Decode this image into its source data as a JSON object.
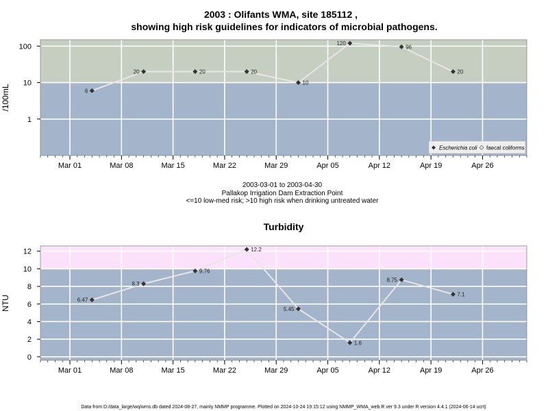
{
  "chart_data": [
    {
      "type": "line",
      "title": "2003 : Olifants WMA, site 185112 ,",
      "subtitle": "showing high risk guidelines for indicators of microbial pathogens.",
      "ylabel": "/100mL",
      "y_scale": "log",
      "ylim": [
        0.1,
        150
      ],
      "y_ticks": [
        1,
        10,
        100
      ],
      "y_tick_labels": [
        "1",
        "10",
        "100"
      ],
      "x_range": [
        "2003-02-25",
        "2003-05-02"
      ],
      "x_ticks": [
        "2003-03-01",
        "2003-03-08",
        "2003-03-15",
        "2003-03-22",
        "2003-03-29",
        "2003-04-05",
        "2003-04-12",
        "2003-04-19",
        "2003-04-26"
      ],
      "x_tick_labels": [
        "Mar 01",
        "Mar 08",
        "Mar 15",
        "Mar 22",
        "Mar 29",
        "Apr 05",
        "Apr 12",
        "Apr 19",
        "Apr 26"
      ],
      "bands": [
        {
          "from": 0.1,
          "to": 10,
          "color": "#a3b4cb"
        },
        {
          "from": 10,
          "to": 150,
          "color": "#c5cec1"
        }
      ],
      "series": [
        {
          "name": "Escherichia coli",
          "x": [
            "2003-03-04",
            "2003-03-11",
            "2003-03-18",
            "2003-03-25",
            "2003-04-01",
            "2003-04-08",
            "2003-04-15",
            "2003-04-22"
          ],
          "values": [
            6,
            20,
            20,
            20,
            10,
            120,
            96,
            20
          ],
          "labels": [
            "6",
            "20",
            "20",
            "20",
            "10",
            "120",
            "96",
            "20"
          ],
          "label_side": [
            "left",
            "left",
            "right",
            "right",
            "right",
            "left",
            "right",
            "right"
          ]
        }
      ],
      "legend": {
        "position": "bottom-right",
        "items": [
          "Escherichia coli",
          "faecal coliforms"
        ]
      },
      "caption": [
        "2003-03-01 to 2003-04-30",
        "Pallakop Irrigation Dam Extraction Point",
        "<=10 low-med risk; >10 high risk when drinking untreated water"
      ]
    },
    {
      "type": "line",
      "title": "Turbidity",
      "ylabel": "NTU",
      "y_scale": "linear",
      "ylim": [
        -0.4,
        12.6
      ],
      "y_ticks": [
        0,
        2,
        4,
        6,
        8,
        10,
        12
      ],
      "y_tick_labels": [
        "0",
        "2",
        "4",
        "6",
        "8",
        "10",
        "12"
      ],
      "x_range": [
        "2003-02-25",
        "2003-05-02"
      ],
      "x_ticks": [
        "2003-03-01",
        "2003-03-08",
        "2003-03-15",
        "2003-03-22",
        "2003-03-29",
        "2003-04-05",
        "2003-04-12",
        "2003-04-19",
        "2003-04-26"
      ],
      "x_tick_labels": [
        "Mar 01",
        "Mar 08",
        "Mar 15",
        "Mar 22",
        "Mar 29",
        "Apr 05",
        "Apr 12",
        "Apr 19",
        "Apr 26"
      ],
      "bands": [
        {
          "from": -0.4,
          "to": 10,
          "color": "#a3b4cb"
        },
        {
          "from": 10,
          "to": 12.6,
          "color": "#fbe1f9"
        }
      ],
      "series": [
        {
          "name": "",
          "x": [
            "2003-03-04",
            "2003-03-11",
            "2003-03-18",
            "2003-03-25",
            "2003-04-01",
            "2003-04-08",
            "2003-04-15",
            "2003-04-22"
          ],
          "values": [
            6.47,
            8.3,
            9.76,
            12.2,
            5.45,
            1.6,
            8.75,
            7.1
          ],
          "labels": [
            "6.47",
            "8.3",
            "9.76",
            "12.2",
            "5.45",
            "1.6",
            "8.75",
            "7.1"
          ],
          "label_side": [
            "left",
            "left",
            "right",
            "right",
            "left",
            "right",
            "left",
            "right"
          ]
        }
      ]
    }
  ],
  "footer": "Data from D:/data_large/wq/wms.db dated 2024-08-27, mainly NMMP programme. Plotted on 2024-10-24 19:15:12 using NMMP_WMA_web.R ver 9.3 under R version 4.4.1 (2024-06-14 ucrt)",
  "colors": {
    "line": "#e6e6e6",
    "point": "#333333",
    "grid": "#ffffff",
    "frame": "#888888"
  }
}
